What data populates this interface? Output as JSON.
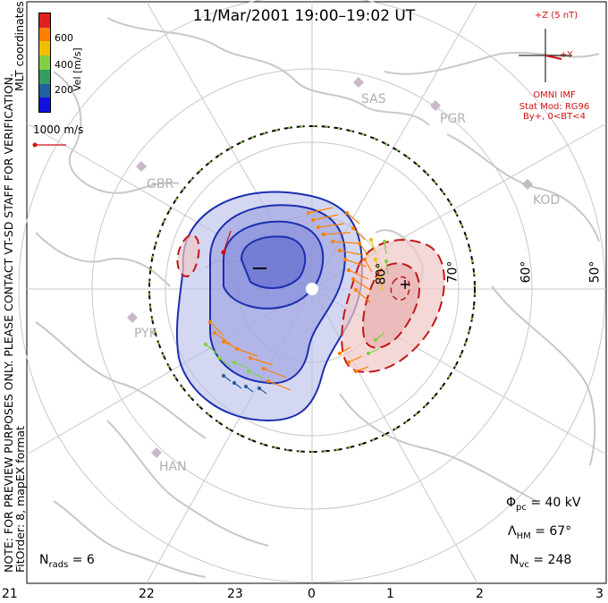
{
  "title": "11/Mar/2001  19:00–19:02  UT",
  "side_note_line1": "NOTE: FOR PREVIEW PURPOSES ONLY. PLEASE CONTACT VT-SD STAFF FOR VERIFICATION.",
  "side_note_line2": "FitOrder: 8, mapEX format",
  "mlt_label": "MLT coordinates",
  "colorbar": {
    "axis_label": "Vel [m/s]",
    "ticks": [
      "600",
      "400",
      "200"
    ],
    "colors": [
      "#e02020",
      "#ff8000",
      "#f0c000",
      "#80d040",
      "#30a060",
      "#2060a0",
      "#1010e0"
    ]
  },
  "scale_vector": {
    "label": "1000 m/s",
    "color": "#d01010"
  },
  "imf": {
    "z_label": "+Z (5 nT)",
    "y_label": "+Y",
    "source": "OMNI IMF",
    "model": "Stat Mod: RG96",
    "condition": "By+, 0<BT<4"
  },
  "stations": [
    "SAS",
    "PGR",
    "GBR",
    "KOD",
    "PYK",
    "HAN"
  ],
  "latitude_labels": [
    "80°",
    "70°",
    "60°",
    "50°"
  ],
  "mlt_axis": [
    "21",
    "22",
    "23",
    "0",
    "1",
    "2",
    "3"
  ],
  "stats": {
    "phi_pc_symbol": "Φ",
    "phi_pc_sub": "pc",
    "phi_pc_value": "=  40 kV",
    "lambda_hm_symbol": "Λ",
    "lambda_hm_sub": "HM",
    "lambda_hm_value": "=  67°",
    "n_vc_symbol": "N",
    "n_vc_sub": "vc",
    "n_vc_value": "=  248",
    "n_rads_symbol": "N",
    "n_rads_sub": "rads",
    "n_rads_value": "=  6"
  },
  "colors": {
    "negative_cell": "#1b2fb0",
    "positive_cell": "#c01818",
    "coastline": "#c8c8c8",
    "grid": "#c8c8c8"
  }
}
